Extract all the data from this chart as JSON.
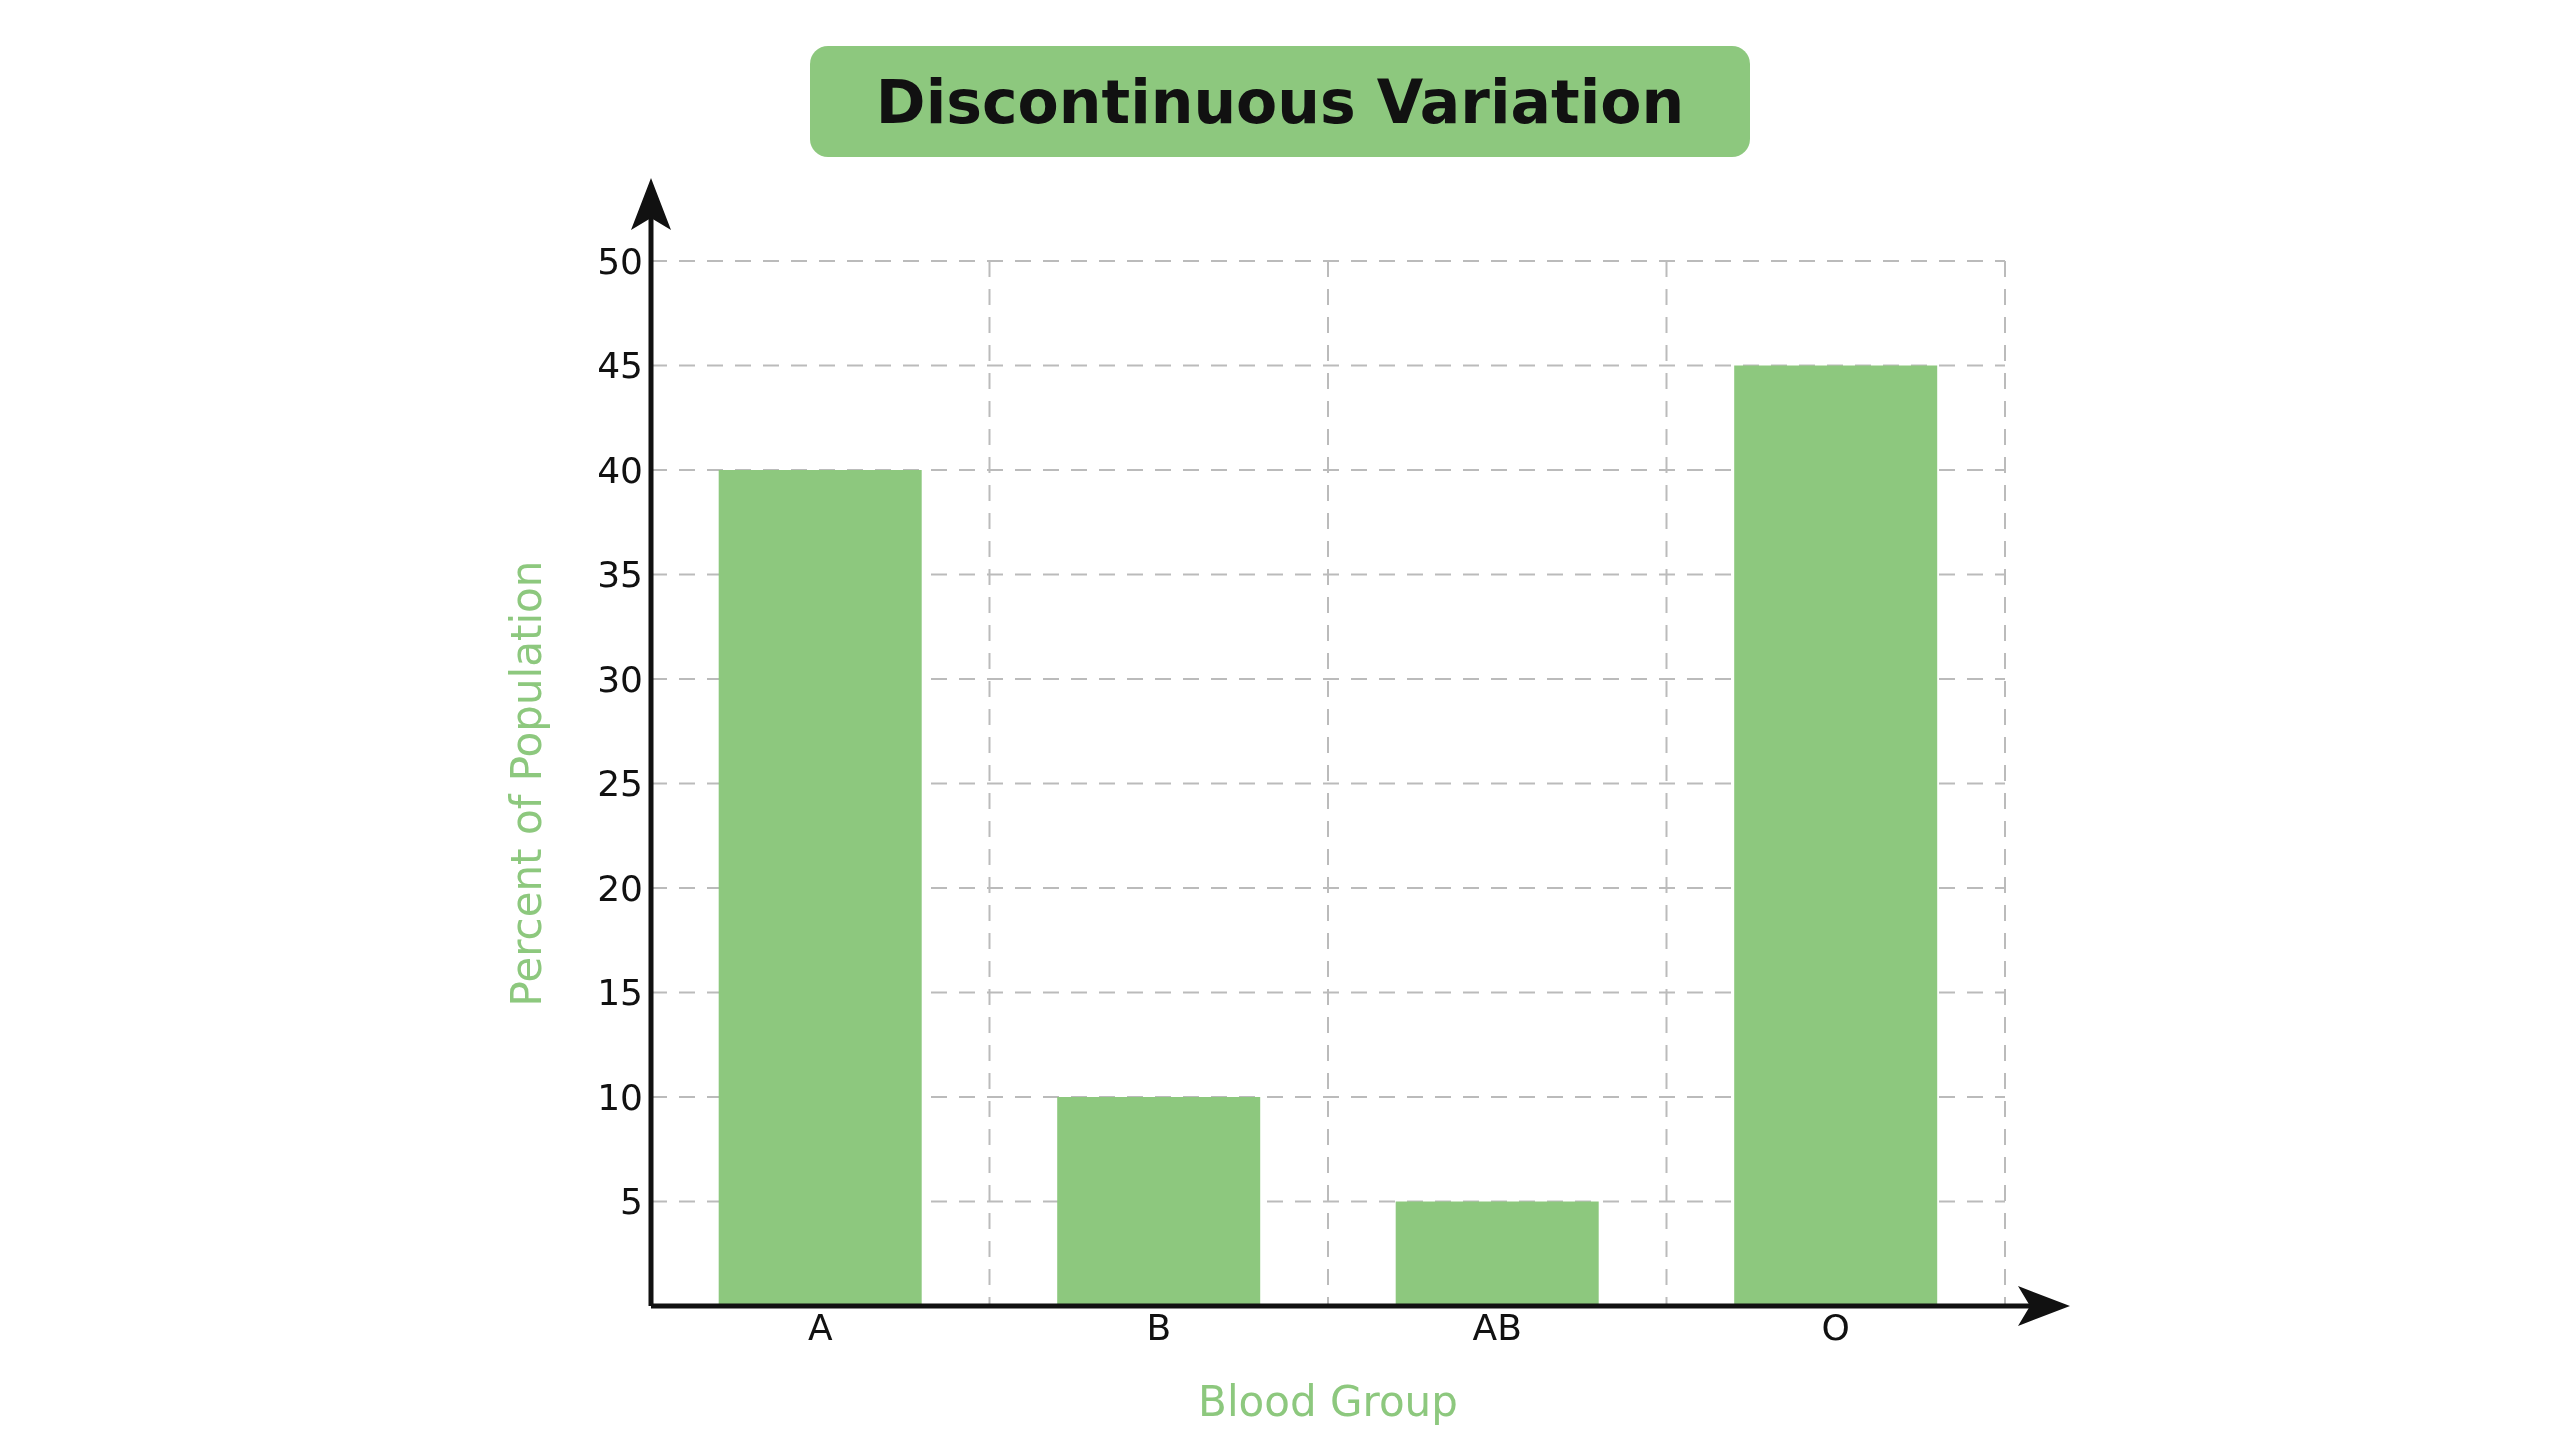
{
  "chart_data": {
    "type": "bar",
    "title": "Discontinuous Variation",
    "xlabel": "Blood Group",
    "ylabel": "Percent of Population",
    "categories": [
      "A",
      "B",
      "AB",
      "O"
    ],
    "values": [
      40,
      10,
      5,
      45
    ],
    "color": "#8dc87e",
    "ylim": [
      0,
      50
    ],
    "yticks": [
      5,
      10,
      15,
      20,
      25,
      30,
      35,
      40,
      45,
      50
    ],
    "grid": true,
    "legend": false
  }
}
